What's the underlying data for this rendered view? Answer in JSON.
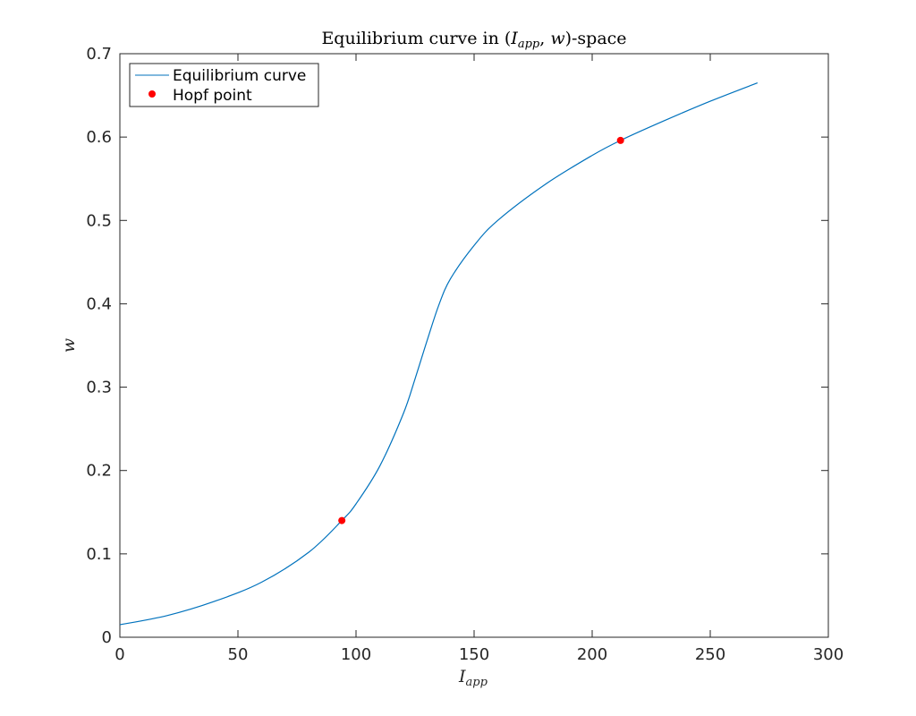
{
  "chart_data": {
    "type": "line",
    "title": {
      "prefix": "Equilibrium curve in (",
      "var1": "I",
      "var1_sub": "app",
      "sep": ", ",
      "var2": "w",
      "suffix": ")-space"
    },
    "xlabel": {
      "main": "I",
      "sub": "app"
    },
    "ylabel": "w",
    "xlim": [
      0,
      300
    ],
    "ylim": [
      0,
      0.7
    ],
    "xticks": [
      0,
      50,
      100,
      150,
      200,
      250,
      300
    ],
    "yticks": [
      0,
      0.1,
      0.2,
      0.3,
      0.4,
      0.5,
      0.6,
      0.7
    ],
    "xtick_labels": [
      "0",
      "50",
      "100",
      "150",
      "200",
      "250",
      "300"
    ],
    "ytick_labels": [
      "0",
      "0.1",
      "0.2",
      "0.3",
      "0.4",
      "0.5",
      "0.6",
      "0.7"
    ],
    "grid": false,
    "legend_position": "top-left",
    "series": [
      {
        "name": "Equilibrium curve",
        "kind": "line",
        "color": "#0072bd",
        "x": [
          0,
          20,
          40,
          60,
          80,
          94,
          100,
          110,
          120,
          125,
          130,
          135,
          140,
          150,
          160,
          180,
          200,
          212,
          230,
          250,
          270
        ],
        "y": [
          0.015,
          0.026,
          0.043,
          0.066,
          0.102,
          0.14,
          0.16,
          0.205,
          0.268,
          0.31,
          0.355,
          0.398,
          0.43,
          0.47,
          0.5,
          0.543,
          0.578,
          0.596,
          0.619,
          0.643,
          0.665
        ]
      },
      {
        "name": "Hopf point",
        "kind": "marker",
        "color": "#ff0000",
        "x": [
          94,
          212
        ],
        "y": [
          0.14,
          0.596
        ]
      }
    ]
  }
}
